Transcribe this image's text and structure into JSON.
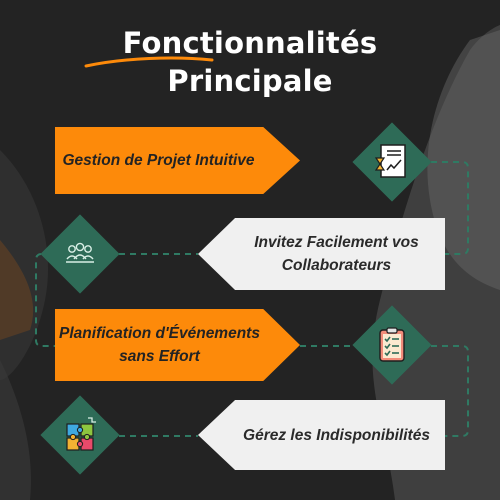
{
  "title": {
    "line1": "Fonctionnalités",
    "line2": "Principale"
  },
  "colors": {
    "background": "#232323",
    "accent_orange": "#fd8a0a",
    "banner_white": "#f0f0f0",
    "diamond_green": "#2e6b57"
  },
  "features": [
    {
      "lines": [
        "Gestion de Projet Intuitive"
      ],
      "style": "orange",
      "icon": "document-chart-hourglass-icon"
    },
    {
      "lines": [
        "Invitez Facilement vos",
        "Collaborateurs"
      ],
      "style": "white",
      "icon": "team-users-icon"
    },
    {
      "lines": [
        "Planification d'Événements",
        "sans Effort"
      ],
      "style": "orange",
      "icon": "checklist-clipboard-icon"
    },
    {
      "lines": [
        "Gérez les Indisponibilités"
      ],
      "style": "white",
      "icon": "puzzle-pieces-icon"
    }
  ]
}
